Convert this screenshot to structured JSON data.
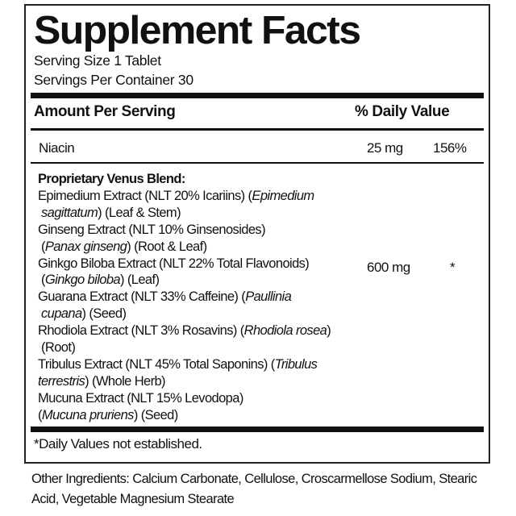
{
  "title": "Supplement Facts",
  "serving_size": "Serving Size 1 Tablet",
  "servings_per_container": "Servings Per Container 30",
  "header": {
    "amount": "Amount Per Serving",
    "dv": "% Daily Value"
  },
  "niacin": {
    "name": "Niacin",
    "amount": "25 mg",
    "dv": "156%"
  },
  "blend": {
    "amount": "600 mg",
    "dv": "*",
    "lines": [
      [
        {
          "t": "Proprietary Venus Blend:",
          "s": "b"
        }
      ],
      [
        {
          "t": "Epimedium Extract (NLT 20% Icariins) ("
        },
        {
          "t": "Epimedium",
          "s": "i"
        }
      ],
      [
        {
          "t": " sagittatum",
          "s": "i"
        },
        {
          "t": ") (Leaf & Stem)"
        }
      ],
      [
        {
          "t": "Ginseng Extract (NLT 10% Ginsenosides)"
        }
      ],
      [
        {
          "t": " ("
        },
        {
          "t": "Panax ginseng",
          "s": "i"
        },
        {
          "t": ") (Root & Leaf)"
        }
      ],
      [
        {
          "t": "Ginkgo Biloba Extract (NLT 22% Total Flavonoids)"
        }
      ],
      [
        {
          "t": " ("
        },
        {
          "t": "Ginkgo biloba",
          "s": "i"
        },
        {
          "t": ") (Leaf)"
        }
      ],
      [
        {
          "t": "Guarana Extract (NLT 33% Caffeine) ("
        },
        {
          "t": "Paullinia",
          "s": "i"
        }
      ],
      [
        {
          "t": " cupana",
          "s": "i"
        },
        {
          "t": ") (Seed)"
        }
      ],
      [
        {
          "t": "Rhodiola Extract (NLT 3% Rosavins) ("
        },
        {
          "t": "Rhodiola rosea",
          "s": "i"
        },
        {
          "t": ")"
        }
      ],
      [
        {
          "t": " (Root)"
        }
      ],
      [
        {
          "t": "Tribulus Extract (NLT 45% Total Saponins) ("
        },
        {
          "t": "Tribulus",
          "s": "i"
        }
      ],
      [
        {
          "t": "terrestris",
          "s": "i"
        },
        {
          "t": ") (Whole Herb)"
        }
      ],
      [
        {
          "t": "Mucuna Extract (NLT 15% Levodopa)"
        }
      ],
      [
        {
          "t": "("
        },
        {
          "t": "Mucuna pruriens",
          "s": "i"
        },
        {
          "t": ") (Seed)"
        }
      ]
    ]
  },
  "footnote": "*Daily Values not established.",
  "other_ingredients": "Other Ingredients: Calcium Carbonate, Cellulose, Croscarmellose Sodium, Stearic Acid, Vegetable Magnesium Stearate"
}
